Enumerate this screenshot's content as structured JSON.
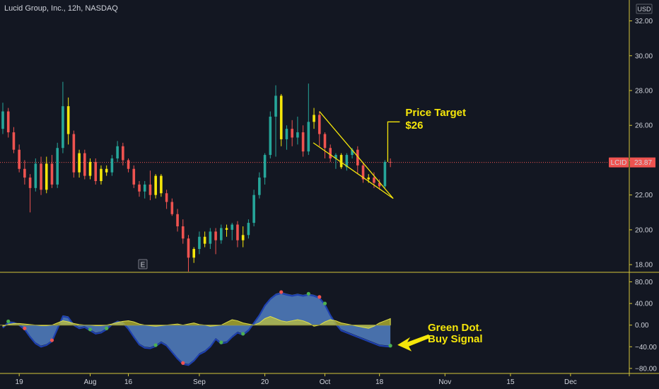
{
  "header": {
    "title": "Lucid Group, Inc., 12h, NASDAQ",
    "currency": "USD"
  },
  "chart_data": [
    {
      "type": "candlestick",
      "title": "Lucid Group, Inc., 12h, NASDAQ",
      "ylim": [
        17.6,
        33.2
      ],
      "y_ticks": [
        18,
        20,
        22,
        24,
        26,
        28,
        30,
        32
      ],
      "y_tick_labels": [
        "18.00",
        "20.00",
        "22.00",
        "24.00",
        "26.00",
        "28.00",
        "30.00",
        "32.00"
      ],
      "last_price": {
        "symbol": "LCID",
        "value": "23.87"
      },
      "colors": {
        "up": "#26a69a",
        "down": "#ef5350",
        "inside": "#f5e60a",
        "annotation": "#f5e60a"
      },
      "candles": [
        [
          25.8,
          26.8,
          25.5,
          27.3
        ],
        [
          26.8,
          25.6,
          25.3,
          27.0
        ],
        [
          25.6,
          24.6,
          24.4,
          25.9
        ],
        [
          24.6,
          23.5,
          23.3,
          24.9
        ],
        [
          23.5,
          23.0,
          22.6,
          24.0
        ],
        [
          23.0,
          22.4,
          21.0,
          23.2
        ],
        [
          22.4,
          23.8,
          22.2,
          24.1
        ],
        [
          23.8,
          22.3,
          22.0,
          24.2
        ],
        [
          22.3,
          23.8,
          22.1,
          24.2
        ],
        [
          23.8,
          22.6,
          22.4,
          24.3
        ],
        [
          22.6,
          24.7,
          22.4,
          25.0
        ],
        [
          24.7,
          27.1,
          24.4,
          28.5
        ],
        [
          27.1,
          25.5,
          24.9,
          27.6
        ],
        [
          25.5,
          23.3,
          23.0,
          25.7
        ],
        [
          23.3,
          24.4,
          23.0,
          24.6
        ],
        [
          24.4,
          23.1,
          22.9,
          24.6
        ],
        [
          23.1,
          23.9,
          22.9,
          24.1
        ],
        [
          23.9,
          22.8,
          22.6,
          24.1
        ],
        [
          22.8,
          23.5,
          22.6,
          23.7
        ],
        [
          23.5,
          23.3,
          23.1,
          23.7
        ],
        [
          23.3,
          24.1,
          23.1,
          24.3
        ],
        [
          24.1,
          24.8,
          23.9,
          25.1
        ],
        [
          24.8,
          24.0,
          23.7,
          25.0
        ],
        [
          24.0,
          23.5,
          23.3,
          24.1
        ],
        [
          23.5,
          22.6,
          22.4,
          23.7
        ],
        [
          22.6,
          22.2,
          21.9,
          22.8
        ],
        [
          22.2,
          22.6,
          21.8,
          22.8
        ],
        [
          22.6,
          22.0,
          21.7,
          23.4
        ],
        [
          22.0,
          23.1,
          21.8,
          23.2
        ],
        [
          23.1,
          22.1,
          21.9,
          23.2
        ],
        [
          22.1,
          21.6,
          21.2,
          22.3
        ],
        [
          21.6,
          20.9,
          20.8,
          21.8
        ],
        [
          20.9,
          20.2,
          19.9,
          21.2
        ],
        [
          20.2,
          19.5,
          19.2,
          20.6
        ],
        [
          19.5,
          18.4,
          17.6,
          19.7
        ],
        [
          18.4,
          18.9,
          18.1,
          19.0
        ],
        [
          18.9,
          19.6,
          18.6,
          19.9
        ],
        [
          19.6,
          19.2,
          19.0,
          19.9
        ],
        [
          19.2,
          19.9,
          18.9,
          20.1
        ],
        [
          19.9,
          19.4,
          18.6,
          20.1
        ],
        [
          19.4,
          20.1,
          19.2,
          20.3
        ],
        [
          20.1,
          20.0,
          19.6,
          20.3
        ],
        [
          20.0,
          20.3,
          19.4,
          20.4
        ],
        [
          20.3,
          19.4,
          19.0,
          20.5
        ],
        [
          19.4,
          19.7,
          19.0,
          20.2
        ],
        [
          19.7,
          20.4,
          19.5,
          20.6
        ],
        [
          20.4,
          22.0,
          20.2,
          22.3
        ],
        [
          22.0,
          23.0,
          21.8,
          23.3
        ],
        [
          23.0,
          24.3,
          22.6,
          24.4
        ],
        [
          24.3,
          26.5,
          24.1,
          26.8
        ],
        [
          26.5,
          27.7,
          24.2,
          28.3
        ],
        [
          27.7,
          25.2,
          24.8,
          27.8
        ],
        [
          25.2,
          25.8,
          24.6,
          26.0
        ],
        [
          25.8,
          25.3,
          24.8,
          26.3
        ],
        [
          25.3,
          25.6,
          24.9,
          26.5
        ],
        [
          25.6,
          24.5,
          24.2,
          26.0
        ],
        [
          24.5,
          26.2,
          24.3,
          28.4
        ],
        [
          26.2,
          26.6,
          25.8,
          27.0
        ],
        [
          26.6,
          25.5,
          24.8,
          26.8
        ],
        [
          25.5,
          24.7,
          24.1,
          25.6
        ],
        [
          24.7,
          24.1,
          23.9,
          24.9
        ],
        [
          24.1,
          24.3,
          23.5,
          24.4
        ],
        [
          24.3,
          23.6,
          23.5,
          24.4
        ],
        [
          23.6,
          24.3,
          23.4,
          24.4
        ],
        [
          24.3,
          24.6,
          24.1,
          24.7
        ],
        [
          24.6,
          23.7,
          23.2,
          24.8
        ],
        [
          23.7,
          22.9,
          22.7,
          23.9
        ],
        [
          22.9,
          23.0,
          22.7,
          23.2
        ],
        [
          23.0,
          22.7,
          22.4,
          23.3
        ],
        [
          22.7,
          22.5,
          22.3,
          22.9
        ],
        [
          22.5,
          23.9,
          22.4,
          24.0
        ],
        [
          23.9,
          23.87,
          23.6,
          24.1
        ]
      ],
      "panel": {
        "type": "area",
        "ylim": [
          -88,
          95
        ],
        "y_ticks": [
          80,
          40,
          0,
          -40,
          -80
        ],
        "y_tick_labels": [
          "80.00",
          "40.00",
          "0.00",
          "−40.00",
          "−80.00"
        ],
        "values": [
          -3,
          7,
          6,
          2,
          -6,
          -20,
          -32,
          -38,
          -35,
          -28,
          -5,
          18,
          16,
          2,
          -4,
          -2,
          -8,
          -14,
          -12,
          -6,
          3,
          8,
          6,
          -5,
          -20,
          -34,
          -40,
          -41,
          -37,
          -30,
          -36,
          -48,
          -60,
          -70,
          -72,
          -64,
          -52,
          -47,
          -38,
          -24,
          -32,
          -30,
          -20,
          -12,
          -16,
          -8,
          6,
          20,
          38,
          50,
          58,
          61,
          58,
          56,
          58,
          56,
          58,
          56,
          52,
          40,
          20,
          4,
          -8,
          -12,
          -16,
          -20,
          -24,
          -28,
          -32,
          -36,
          -37,
          -38
        ],
        "signal_values": [
          -2,
          1,
          3,
          3,
          2,
          1,
          0,
          -1,
          -1,
          0,
          4,
          8,
          6,
          3,
          1,
          0,
          0,
          -1,
          -1,
          0,
          2,
          5,
          7,
          8,
          6,
          2,
          0,
          -1,
          -2,
          -1,
          0,
          1,
          2,
          0,
          2,
          4,
          1,
          0,
          -2,
          -1,
          0,
          5,
          10,
          8,
          4,
          2,
          0,
          4,
          12,
          16,
          12,
          8,
          6,
          8,
          10,
          8,
          4,
          -2,
          0,
          6,
          10,
          8,
          4,
          2,
          0,
          -2,
          -4,
          -6,
          -2,
          4,
          8,
          12
        ],
        "dots": [
          {
            "i": 1,
            "c": "up"
          },
          {
            "i": 4,
            "c": "down"
          },
          {
            "i": 9,
            "c": "down"
          },
          {
            "i": 16,
            "c": "up"
          },
          {
            "i": 19,
            "c": "up"
          },
          {
            "i": 28,
            "c": "up"
          },
          {
            "i": 33,
            "c": "down"
          },
          {
            "i": 40,
            "c": "up"
          },
          {
            "i": 44,
            "c": "up"
          },
          {
            "i": 51,
            "c": "down"
          },
          {
            "i": 56,
            "c": "up"
          },
          {
            "i": 58,
            "c": "down"
          },
          {
            "i": 59,
            "c": "up"
          },
          {
            "i": 71,
            "c": "up"
          }
        ]
      },
      "x_ticks": [
        {
          "i": 3,
          "label": "19"
        },
        {
          "i": 16,
          "label": "Aug"
        },
        {
          "i": 23,
          "label": "16"
        },
        {
          "i": 36,
          "label": "Sep"
        },
        {
          "i": 48,
          "label": "20"
        },
        {
          "i": 59,
          "label": "Oct"
        },
        {
          "i": 69,
          "label": "18"
        },
        {
          "i": 81,
          "label": "Nov"
        },
        {
          "i": 93,
          "label": "15"
        },
        {
          "i": 104,
          "label": "Dec"
        }
      ],
      "annotations": {
        "price_target": [
          "Price Target",
          "$26"
        ],
        "buy_signal": [
          "Green Dot.",
          "Buy Signal"
        ],
        "earnings_marker": "E"
      }
    }
  ]
}
